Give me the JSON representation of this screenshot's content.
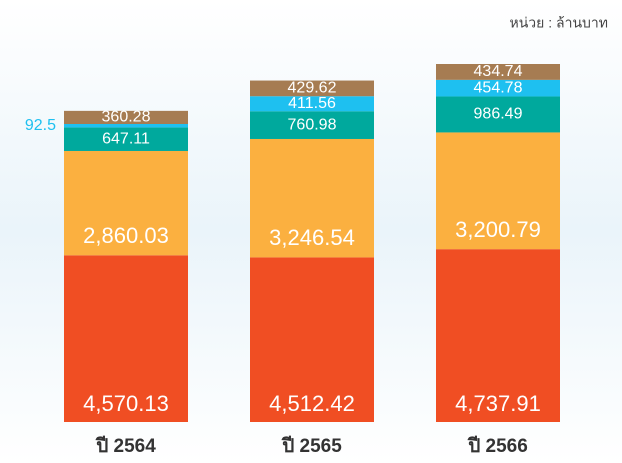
{
  "chart_data": {
    "type": "stacked-bar",
    "unit_note": "หน่วย : ล้านบาท",
    "categories": [
      "ปี 2564",
      "ปี 2565",
      "ปี 2566"
    ],
    "series": [
      {
        "color": "#f04e23",
        "values": [
          4570.13,
          4512.42,
          4737.91
        ],
        "value_labels": [
          "4,570.13",
          "4,512.42",
          "4,737.91"
        ]
      },
      {
        "color": "#fbb040",
        "values": [
          2860.03,
          3246.54,
          3200.79
        ],
        "value_labels": [
          "2,860.03",
          "3,246.54",
          "3,200.79"
        ]
      },
      {
        "color": "#00a99d",
        "values": [
          647.11,
          760.98,
          986.49
        ],
        "value_labels": [
          "647.11",
          "760.98",
          "986.49"
        ]
      },
      {
        "color": "#1ec0f0",
        "values": [
          92.5,
          411.56,
          454.78
        ],
        "value_labels": [
          "92.5",
          "411.56",
          "454.78"
        ]
      },
      {
        "color": "#a67c52",
        "values": [
          360.28,
          429.62,
          434.74
        ],
        "value_labels": [
          "360.28",
          "429.62",
          "434.74"
        ]
      }
    ]
  }
}
